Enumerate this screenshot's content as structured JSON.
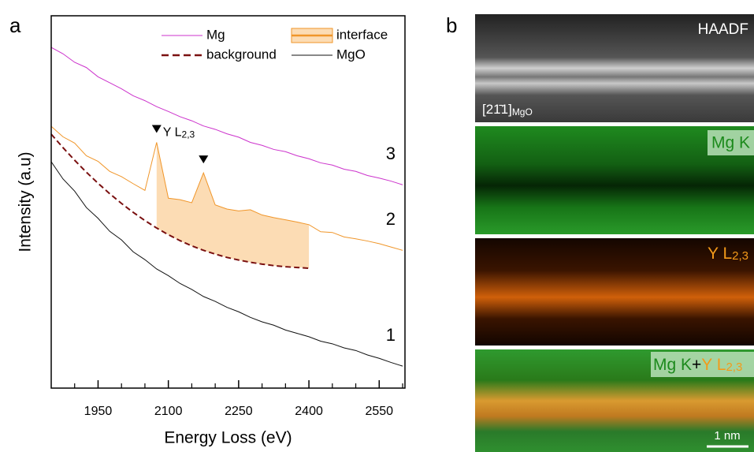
{
  "panel_labels": [
    "a",
    "b"
  ],
  "chart_data": {
    "type": "line",
    "xlabel": "Energy Loss (eV)",
    "ylabel": "Intensity (a.u)",
    "x": [
      1850,
      1875,
      1900,
      1925,
      1950,
      1975,
      2000,
      2025,
      2050,
      2075,
      2100,
      2125,
      2150,
      2175,
      2200,
      2225,
      2250,
      2275,
      2300,
      2325,
      2350,
      2375,
      2400,
      2425,
      2450,
      2475,
      2500,
      2525,
      2550,
      2575,
      2600
    ],
    "xlim": [
      1850,
      2605
    ],
    "ylim": [
      0,
      100
    ],
    "xticks": [
      1950,
      2100,
      2250,
      2400,
      2550
    ],
    "xminorticks": [
      1900,
      2000,
      2050,
      2150,
      2200,
      2300,
      2350,
      2450,
      2500,
      2600
    ],
    "series": [
      {
        "name": "Mg",
        "color": "#cc33cc",
        "label": "3",
        "dash": false,
        "values": [
          91.5,
          89.8,
          87.5,
          86.1,
          83.6,
          82.0,
          80.4,
          78.5,
          77.2,
          75.6,
          74.3,
          72.9,
          71.8,
          70.4,
          69.5,
          68.3,
          67.4,
          66.0,
          65.2,
          64.1,
          63.5,
          62.4,
          61.6,
          60.5,
          59.9,
          58.8,
          58.2,
          57.1,
          56.4,
          55.6,
          54.6
        ]
      },
      {
        "name": "interface",
        "color": "#f0962a",
        "fill": "#fcdcb4",
        "label": "2",
        "dash": false,
        "values": [
          70.3,
          67.5,
          65.8,
          62.4,
          60.9,
          58.2,
          56.8,
          54.9,
          53.1,
          66.0,
          51.0,
          50.6,
          49.8,
          57.8,
          49.2,
          48.1,
          47.6,
          47.9,
          46.5,
          45.8,
          45.2,
          44.6,
          43.9,
          42.0,
          41.8,
          40.6,
          40.1,
          39.5,
          38.8,
          37.9,
          37.0
        ]
      },
      {
        "name": "background",
        "color": "#7a1010",
        "dash": true,
        "values": [
          68.2,
          64.6,
          61.2,
          58.0,
          55.0,
          52.2,
          49.6,
          47.2,
          45.0,
          43.0,
          41.2,
          39.6,
          38.2,
          37.0,
          36.0,
          35.1,
          34.4,
          33.8,
          33.3,
          32.9,
          32.6,
          32.4,
          32.2,
          null,
          null,
          null,
          null,
          null,
          null,
          null,
          null
        ]
      },
      {
        "name": "MgO",
        "color": "#111111",
        "label": "1",
        "dash": false,
        "values": [
          60.8,
          56.2,
          52.9,
          48.5,
          45.6,
          42.1,
          39.8,
          36.6,
          34.5,
          32.0,
          30.2,
          28.1,
          26.5,
          24.6,
          23.3,
          21.7,
          20.5,
          19.0,
          17.8,
          16.9,
          15.6,
          14.7,
          13.8,
          12.6,
          11.9,
          10.8,
          10.1,
          8.9,
          8.0,
          6.9,
          5.9
        ]
      }
    ],
    "peaks": [
      {
        "x": 2075,
        "text": "Y L",
        "sub": "2,3"
      },
      {
        "x": 2175
      }
    ]
  },
  "maps": [
    {
      "title": "HAADF",
      "zone": "[21̄1]",
      "zone_sub": "MgO"
    },
    {
      "title": "Mg K"
    },
    {
      "title": "Y L",
      "sub": "2,3"
    },
    {
      "first": "Mg K",
      "join": "+",
      "second": "Y L",
      "sub": "2,3"
    }
  ],
  "scale_bar": "1 nm"
}
